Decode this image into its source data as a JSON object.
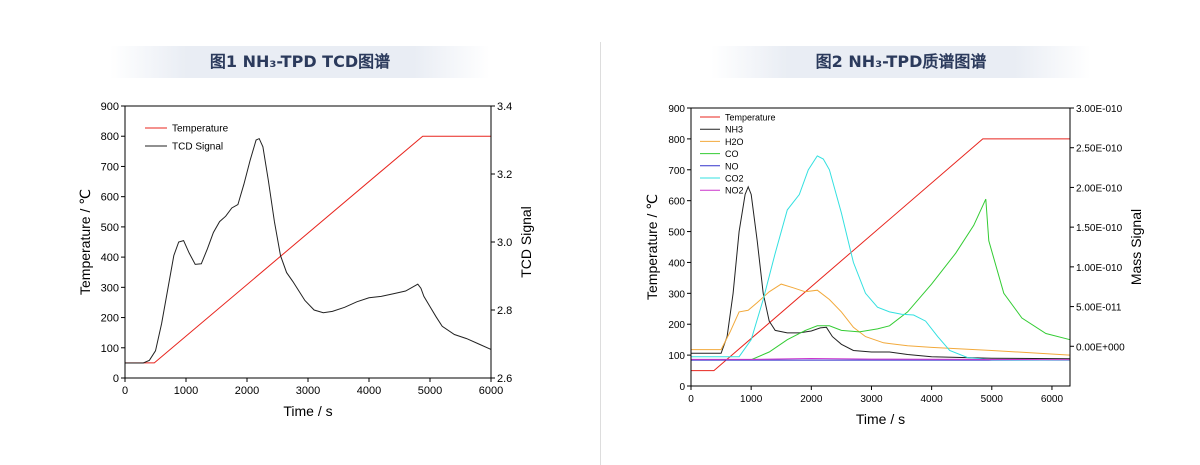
{
  "chart_data": [
    {
      "type": "line",
      "title": "图1 NH₃-TPD TCD图谱",
      "xlabel": "Time / s",
      "ylabel": "Temperature / ℃",
      "y2label": "TCD Signal",
      "xlim": [
        0,
        6000
      ],
      "ylim": [
        0,
        900
      ],
      "y2lim": [
        2.6,
        3.4
      ],
      "x_ticks": [
        "0",
        "1000",
        "2000",
        "3000",
        "4000",
        "5000",
        "6000"
      ],
      "y_ticks": [
        "0",
        "100",
        "200",
        "300",
        "400",
        "500",
        "600",
        "700",
        "800",
        "900"
      ],
      "y2_ticks": [
        "2.6",
        "2.8",
        "3.0",
        "3.2",
        "3.4"
      ],
      "grid": false,
      "legend_position": "top-left",
      "series": [
        {
          "name": "Temperature",
          "axis": "left",
          "color": "#e8251e",
          "points": [
            [
              0,
              50
            ],
            [
              480,
              50
            ],
            [
              4880,
              800
            ],
            [
              6000,
              800
            ]
          ]
        },
        {
          "name": "TCD Signal",
          "axis": "right",
          "color": "#222222",
          "points": [
            [
              0,
              2.644
            ],
            [
              300,
              2.644
            ],
            [
              400,
              2.652
            ],
            [
              500,
              2.68
            ],
            [
              600,
              2.76
            ],
            [
              700,
              2.86
            ],
            [
              800,
              2.96
            ],
            [
              880,
              3.0
            ],
            [
              960,
              3.004
            ],
            [
              1050,
              2.968
            ],
            [
              1150,
              2.934
            ],
            [
              1250,
              2.936
            ],
            [
              1350,
              2.98
            ],
            [
              1450,
              3.028
            ],
            [
              1550,
              3.06
            ],
            [
              1650,
              3.076
            ],
            [
              1750,
              3.1
            ],
            [
              1850,
              3.11
            ],
            [
              1950,
              3.17
            ],
            [
              2050,
              3.24
            ],
            [
              2150,
              3.3
            ],
            [
              2200,
              3.304
            ],
            [
              2260,
              3.28
            ],
            [
              2350,
              3.18
            ],
            [
              2450,
              3.06
            ],
            [
              2550,
              2.96
            ],
            [
              2650,
              2.91
            ],
            [
              2750,
              2.884
            ],
            [
              2850,
              2.856
            ],
            [
              2950,
              2.828
            ],
            [
              3100,
              2.8
            ],
            [
              3250,
              2.792
            ],
            [
              3400,
              2.796
            ],
            [
              3600,
              2.808
            ],
            [
              3800,
              2.824
            ],
            [
              4000,
              2.836
            ],
            [
              4200,
              2.84
            ],
            [
              4400,
              2.848
            ],
            [
              4600,
              2.856
            ],
            [
              4720,
              2.868
            ],
            [
              4800,
              2.876
            ],
            [
              4850,
              2.864
            ],
            [
              4900,
              2.84
            ],
            [
              5000,
              2.81
            ],
            [
              5100,
              2.78
            ],
            [
              5200,
              2.752
            ],
            [
              5400,
              2.728
            ],
            [
              5600,
              2.716
            ],
            [
              5800,
              2.7
            ],
            [
              6000,
              2.684
            ]
          ]
        }
      ]
    },
    {
      "type": "line",
      "title": "图2 NH₃-TPD质谱图谱",
      "xlabel": "Time / s",
      "ylabel": "Temperature / ℃",
      "y2label": "Mass Signal",
      "xlim": [
        0,
        6300
      ],
      "ylim": [
        0,
        900
      ],
      "y2lim": [
        -5e-11,
        3e-10
      ],
      "x_ticks": [
        "0",
        "1000",
        "2000",
        "3000",
        "4000",
        "5000",
        "6000"
      ],
      "y_ticks": [
        "0",
        "100",
        "200",
        "300",
        "400",
        "500",
        "600",
        "700",
        "800",
        "900"
      ],
      "y2_ticks": [
        "0.00E+000",
        "5.00E-011",
        "1.00E-010",
        "1.50E-010",
        "2.00E-010",
        "2.50E-010",
        "3.00E-010"
      ],
      "y2_tick_values": [
        0,
        5e-11,
        1e-10,
        1.5e-10,
        2e-10,
        2.5e-10,
        3e-10
      ],
      "grid": false,
      "legend_position": "top-left",
      "series": [
        {
          "name": "Temperature",
          "axis": "left",
          "color": "#e8251e",
          "points": [
            [
              0,
              50
            ],
            [
              380,
              50
            ],
            [
              4850,
              800
            ],
            [
              6300,
              800
            ]
          ]
        },
        {
          "name": "NH3",
          "axis": "left",
          "color": "#222222",
          "points": [
            [
              0,
              106
            ],
            [
              500,
              106
            ],
            [
              600,
              160
            ],
            [
              700,
              300
            ],
            [
              800,
              500
            ],
            [
              900,
              620
            ],
            [
              950,
              645
            ],
            [
              1000,
              620
            ],
            [
              1100,
              470
            ],
            [
              1200,
              300
            ],
            [
              1300,
              210
            ],
            [
              1400,
              180
            ],
            [
              1600,
              172
            ],
            [
              1800,
              172
            ],
            [
              2000,
              178
            ],
            [
              2150,
              188
            ],
            [
              2250,
              190
            ],
            [
              2350,
              160
            ],
            [
              2500,
              135
            ],
            [
              2700,
              115
            ],
            [
              3000,
              110
            ],
            [
              3300,
              110
            ],
            [
              3600,
              102
            ],
            [
              4000,
              95
            ],
            [
              5000,
              90
            ],
            [
              6300,
              88
            ]
          ]
        },
        {
          "name": "H2O",
          "axis": "left",
          "color": "#f2a93b",
          "points": [
            [
              0,
              118
            ],
            [
              500,
              118
            ],
            [
              650,
              175
            ],
            [
              800,
              240
            ],
            [
              950,
              245
            ],
            [
              1100,
              270
            ],
            [
              1300,
              305
            ],
            [
              1500,
              330
            ],
            [
              1700,
              318
            ],
            [
              1900,
              305
            ],
            [
              2100,
              310
            ],
            [
              2300,
              280
            ],
            [
              2500,
              240
            ],
            [
              2700,
              190
            ],
            [
              2900,
              160
            ],
            [
              3200,
              140
            ],
            [
              3600,
              130
            ],
            [
              4000,
              125
            ],
            [
              5000,
              115
            ],
            [
              6300,
              100
            ]
          ]
        },
        {
          "name": "CO",
          "axis": "left",
          "color": "#33cc33",
          "points": [
            [
              0,
              85
            ],
            [
              1000,
              85
            ],
            [
              1300,
              110
            ],
            [
              1600,
              150
            ],
            [
              1900,
              180
            ],
            [
              2100,
              195
            ],
            [
              2300,
              195
            ],
            [
              2500,
              180
            ],
            [
              2800,
              175
            ],
            [
              3100,
              185
            ],
            [
              3300,
              195
            ],
            [
              3600,
              240
            ],
            [
              4000,
              330
            ],
            [
              4400,
              430
            ],
            [
              4700,
              520
            ],
            [
              4900,
              605
            ],
            [
              4950,
              470
            ],
            [
              5200,
              300
            ],
            [
              5500,
              220
            ],
            [
              5900,
              170
            ],
            [
              6300,
              150
            ]
          ]
        },
        {
          "name": "NO",
          "axis": "left",
          "color": "#3333cc",
          "points": [
            [
              0,
              84
            ],
            [
              6300,
              84
            ]
          ]
        },
        {
          "name": "CO2",
          "axis": "left",
          "color": "#33e0e0",
          "points": [
            [
              0,
              95
            ],
            [
              800,
              95
            ],
            [
              1000,
              150
            ],
            [
              1200,
              280
            ],
            [
              1400,
              430
            ],
            [
              1600,
              570
            ],
            [
              1800,
              620
            ],
            [
              1950,
              700
            ],
            [
              2100,
              745
            ],
            [
              2200,
              735
            ],
            [
              2300,
              700
            ],
            [
              2500,
              560
            ],
            [
              2700,
              400
            ],
            [
              2900,
              300
            ],
            [
              3100,
              255
            ],
            [
              3300,
              240
            ],
            [
              3500,
              232
            ],
            [
              3700,
              230
            ],
            [
              3900,
              210
            ],
            [
              4100,
              160
            ],
            [
              4300,
              115
            ],
            [
              4600,
              92
            ],
            [
              5000,
              85
            ],
            [
              6300,
              84
            ]
          ]
        },
        {
          "name": "NO2",
          "axis": "left",
          "color": "#cc33cc",
          "points": [
            [
              0,
              86
            ],
            [
              1000,
              86
            ],
            [
              2000,
              89
            ],
            [
              3000,
              87
            ],
            [
              6300,
              85
            ]
          ]
        }
      ]
    }
  ]
}
